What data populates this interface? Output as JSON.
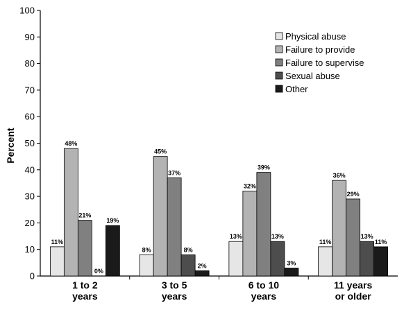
{
  "chart_data": {
    "type": "bar",
    "categories": [
      [
        "1 to 2",
        "years"
      ],
      [
        "3 to 5",
        "years"
      ],
      [
        "6 to 10",
        "years"
      ],
      [
        "11 years",
        "or older"
      ]
    ],
    "series": [
      {
        "name": "Physical abuse",
        "color": "#e6e6e6",
        "values": [
          11,
          8,
          13,
          11
        ],
        "labels": [
          "11%",
          "8%",
          "13%",
          "11%"
        ]
      },
      {
        "name": "Failure to provide",
        "color": "#b3b3b3",
        "values": [
          48,
          45,
          32,
          36
        ],
        "labels": [
          "48%",
          "45%",
          "32%",
          "36%"
        ]
      },
      {
        "name": "Failure to supervise",
        "color": "#808080",
        "values": [
          21,
          37,
          39,
          29
        ],
        "labels": [
          "21%",
          "37%",
          "39%",
          "29%"
        ]
      },
      {
        "name": "Sexual abuse",
        "color": "#4d4d4d",
        "values": [
          0,
          8,
          13,
          13
        ],
        "labels": [
          "0%",
          "8%",
          "13%",
          "13%"
        ]
      },
      {
        "name": "Other",
        "color": "#1a1a1a",
        "values": [
          19,
          2,
          3,
          11
        ],
        "labels": [
          "19%",
          "2%",
          "3%",
          "11%"
        ]
      }
    ],
    "ylabel": "Percent",
    "xlabel": "",
    "title": "",
    "ylim": [
      0,
      100
    ],
    "yticks": [
      "0",
      "10",
      "20",
      "30",
      "40",
      "50",
      "60",
      "70",
      "80",
      "90",
      "100"
    ],
    "grid": false,
    "legend_position": "top-right"
  }
}
